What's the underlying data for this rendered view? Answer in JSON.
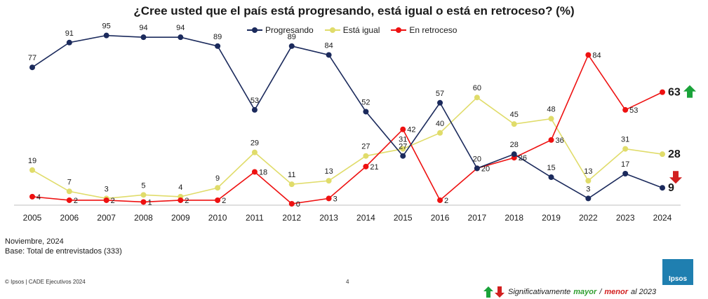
{
  "chart_data": {
    "type": "line",
    "title": "¿Cree usted que el país está progresando, está igual o está en retroceso? (%)",
    "categories": [
      "2005",
      "2006",
      "2007",
      "2008",
      "2009",
      "2010",
      "2011",
      "2012",
      "2013",
      "2014",
      "2015",
      "2016",
      "2017",
      "2018",
      "2019",
      "2022",
      "2023",
      "2024"
    ],
    "ylim": [
      0,
      100
    ],
    "legend_position": "top-center",
    "grid": false,
    "series": [
      {
        "name": "Progresando",
        "color": "#1b2a5c",
        "values": [
          77,
          91,
          95,
          94,
          94,
          89,
          53,
          89,
          84,
          52,
          27,
          57,
          20,
          28,
          15,
          3,
          17,
          9
        ]
      },
      {
        "name": "Está igual",
        "color": "#e0dc6a",
        "values": [
          19,
          7,
          3,
          5,
          4,
          9,
          29,
          11,
          13,
          27,
          31,
          40,
          60,
          45,
          48,
          13,
          31,
          28
        ]
      },
      {
        "name": "En retroceso",
        "color": "#ee1111",
        "values": [
          4,
          2,
          2,
          1,
          2,
          2,
          18,
          0,
          3,
          21,
          42,
          2,
          20,
          26,
          36,
          84,
          53,
          63
        ]
      }
    ]
  },
  "notes": {
    "date": "Noviembre, 2024",
    "base": "Base: Total de entrevistados (333)"
  },
  "footer": {
    "copyright": "© Ipsos | CADE Ejecutivos 2024",
    "page": "4"
  },
  "significance": {
    "prefix": "Significativamente",
    "mayor": "mayor",
    "sep": " / ",
    "menor": "menor",
    "suffix": "al 2023"
  },
  "logo": {
    "text": "Ipsos"
  },
  "colors": {
    "up_arrow": "#1aa33a",
    "down_arrow": "#d21f1f"
  }
}
